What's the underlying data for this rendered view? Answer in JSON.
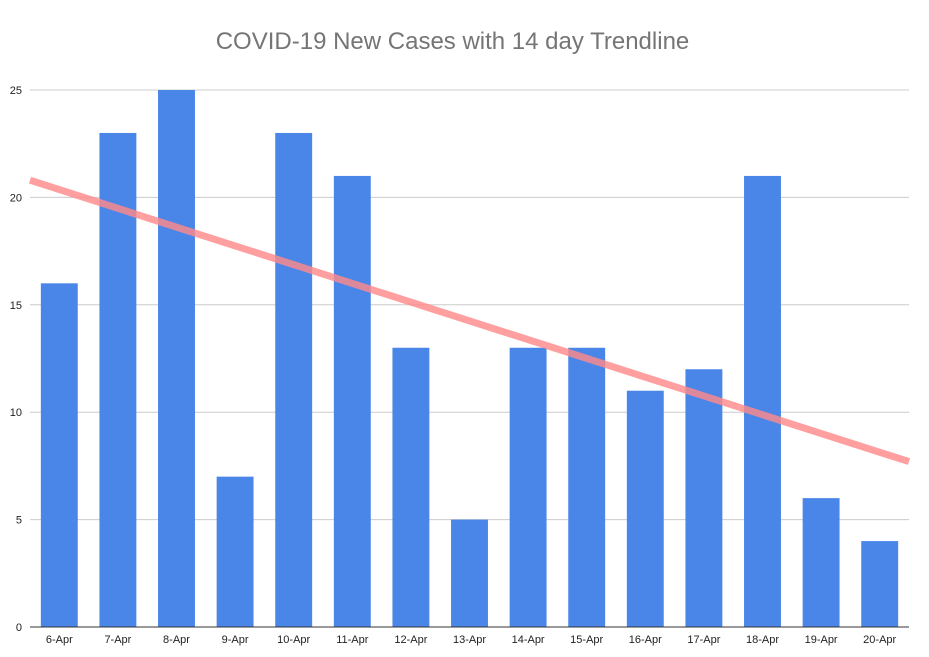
{
  "chart_data": {
    "type": "bar",
    "title": "COVID-19 New Cases with 14 day Trendline",
    "xlabel": "",
    "ylabel": "",
    "categories": [
      "6-Apr",
      "7-Apr",
      "8-Apr",
      "9-Apr",
      "10-Apr",
      "11-Apr",
      "12-Apr",
      "13-Apr",
      "14-Apr",
      "15-Apr",
      "16-Apr",
      "17-Apr",
      "18-Apr",
      "19-Apr",
      "20-Apr"
    ],
    "series": [
      {
        "values": [
          16,
          23,
          25,
          7,
          23,
          21,
          13,
          5,
          13,
          13,
          11,
          12,
          21,
          6,
          4
        ],
        "color": "#4a86e8"
      }
    ],
    "trendline": {
      "type": "linear",
      "start_value": 20.8,
      "end_value": 7.7,
      "color": "#ff8a8a"
    },
    "ylim": [
      0,
      25
    ],
    "yticks": [
      0,
      5,
      10,
      15,
      20,
      25
    ],
    "grid": true,
    "legend": "none"
  }
}
